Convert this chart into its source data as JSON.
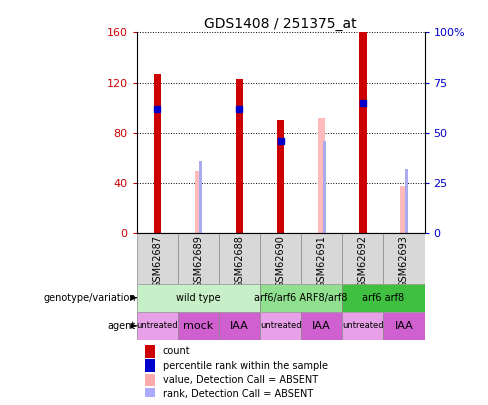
{
  "title": "GDS1408 / 251375_at",
  "samples": [
    "GSM62687",
    "GSM62689",
    "GSM62688",
    "GSM62690",
    "GSM62691",
    "GSM62692",
    "GSM62693"
  ],
  "red_bars": [
    127,
    0,
    123,
    90,
    0,
    160,
    0
  ],
  "pink_bars": [
    0,
    50,
    0,
    0,
    92,
    0,
    38
  ],
  "blue_squares_left": [
    62,
    0,
    62,
    46,
    0,
    65,
    0
  ],
  "light_blue_rank": [
    0,
    36,
    0,
    0,
    46,
    0,
    32
  ],
  "ylim_left": [
    0,
    160
  ],
  "ylim_right": [
    0,
    100
  ],
  "yticks_left": [
    0,
    40,
    80,
    120,
    160
  ],
  "ytick_labels_left": [
    "0",
    "40",
    "80",
    "120",
    "160"
  ],
  "yticks_right": [
    0,
    25,
    50,
    75,
    100
  ],
  "ytick_labels_right": [
    "0",
    "25",
    "50",
    "75",
    "100%"
  ],
  "genotype_groups": [
    {
      "label": "wild type",
      "start": 0,
      "end": 3,
      "color": "#c8f0c8"
    },
    {
      "label": "arf6/arf6 ARF8/arf8",
      "start": 3,
      "end": 5,
      "color": "#90e090"
    },
    {
      "label": "arf6 arf8",
      "start": 5,
      "end": 7,
      "color": "#40c040"
    }
  ],
  "agent_groups": [
    {
      "label": "untreated",
      "start": 0,
      "end": 1,
      "color": "#e8a0e8"
    },
    {
      "label": "mock",
      "start": 1,
      "end": 2,
      "color": "#d060d0"
    },
    {
      "label": "IAA",
      "start": 2,
      "end": 3,
      "color": "#d060d0"
    },
    {
      "label": "untreated",
      "start": 3,
      "end": 4,
      "color": "#e8a0e8"
    },
    {
      "label": "IAA",
      "start": 4,
      "end": 5,
      "color": "#d060d0"
    },
    {
      "label": "untreated",
      "start": 5,
      "end": 6,
      "color": "#e8a0e8"
    },
    {
      "label": "IAA",
      "start": 6,
      "end": 7,
      "color": "#d060d0"
    }
  ],
  "legend_items": [
    {
      "label": "count",
      "color": "#cc0000"
    },
    {
      "label": "percentile rank within the sample",
      "color": "#0000cc"
    },
    {
      "label": "value, Detection Call = ABSENT",
      "color": "#ffaaaa"
    },
    {
      "label": "rank, Detection Call = ABSENT",
      "color": "#aaaaff"
    }
  ],
  "background_color": "#ffffff",
  "left_axis_color": "#cc0000",
  "right_axis_color": "#0000cc"
}
